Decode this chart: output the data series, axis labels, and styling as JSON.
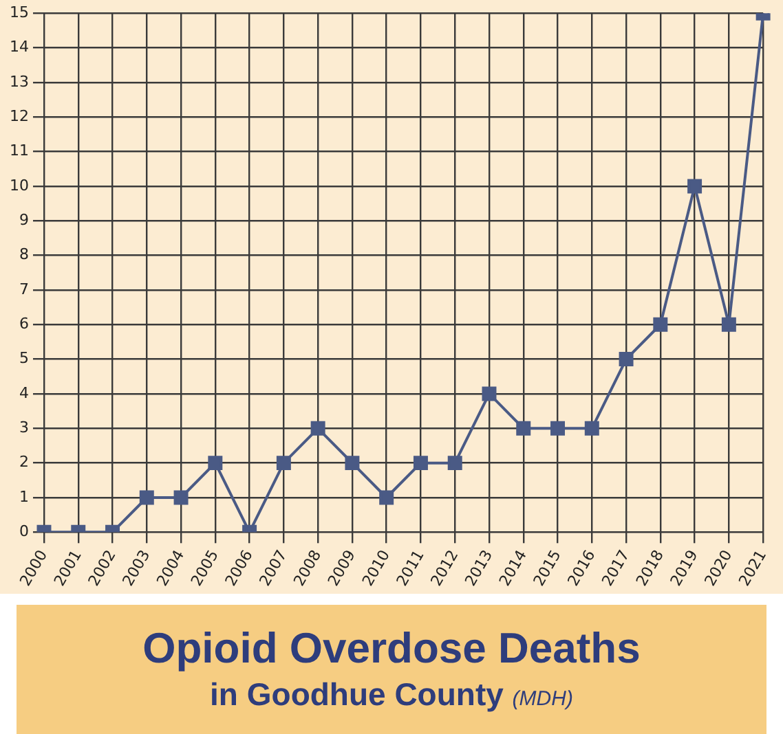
{
  "chart_data": {
    "type": "line",
    "title": "Opioid Overdose Deaths",
    "subtitle": "in Goodhue County",
    "annotations": [
      "(MDH)"
    ],
    "categories": [
      "2000",
      "2001",
      "2002",
      "2003",
      "2004",
      "2005",
      "2006",
      "2007",
      "2008",
      "2009",
      "2010",
      "2011",
      "2012",
      "2013",
      "2014",
      "2015",
      "2016",
      "2017",
      "2018",
      "2019",
      "2020",
      "2021"
    ],
    "series": [
      {
        "color": "#4a5a85",
        "values": [
          0,
          0,
          0,
          1,
          1,
          2,
          0,
          2,
          3,
          2,
          1,
          2,
          2,
          4,
          3,
          3,
          3,
          5,
          6,
          10,
          6,
          15
        ]
      }
    ],
    "ylim": [
      0,
      15
    ],
    "yticks": [
      0,
      1,
      2,
      3,
      4,
      5,
      6,
      7,
      8,
      9,
      10,
      11,
      12,
      13,
      14,
      15
    ],
    "grid": true,
    "legend": false,
    "marker": "square",
    "line_style": "solid"
  }
}
